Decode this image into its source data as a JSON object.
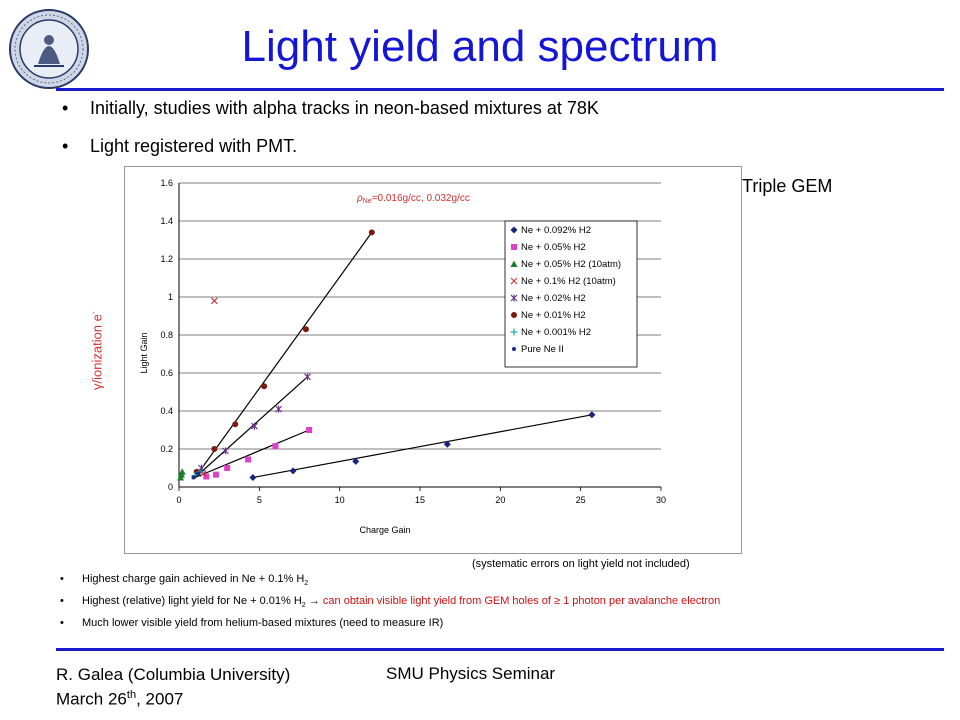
{
  "slide": {
    "title": "Light yield and spectrum",
    "bullets_top": [
      "Initially, studies with alpha tracks in neon-based mixtures at 78K",
      "Light registered with PMT."
    ],
    "triple_gem_note": "**Triple GEM",
    "ylabel_outside": "γ/ionization e",
    "ylabel_outside_sup": "-",
    "systematic_note": "(systematic errors on light yield not included)",
    "bottom_bullets": {
      "b1_pre": "Highest charge gain achieved in Ne + 0.1% H",
      "b1_sub": "2",
      "b2_pre": "Highest (relative) light yield for Ne + 0.01% H",
      "b2_sub": "2",
      "b2_arrow": " → ",
      "b2_red": "can obtain visible light yield from GEM holes of ≥ 1 photon per avalanche electron",
      "b3": "Much lower visible yield from helium-based mixtures (need to measure IR)"
    },
    "footer": {
      "author": "R. Galea (Columbia University)",
      "date_pre": "March 26",
      "date_sup": "th",
      "date_post": ", 2007",
      "center": "SMU Physics Seminar"
    },
    "colors": {
      "title": "#1515d8",
      "rule": "#1a1acc",
      "red_text": "#d01010"
    }
  },
  "chart_data": {
    "type": "scatter",
    "annotation_rho": "ρ",
    "annotation_sub": "Ne",
    "annotation_rest": "=0.016g/cc, 0.032g/cc",
    "xlabel": "Charge Gain",
    "ylabel": "Light Gain",
    "xlim": [
      0,
      30
    ],
    "ylim": [
      0,
      1.6
    ],
    "xticks": [
      "0",
      "5",
      "10",
      "15",
      "20",
      "25",
      "30"
    ],
    "yticks": [
      "0",
      "0.2",
      "0.4",
      "0.6",
      "0.8",
      "1",
      "1.2",
      "1.4",
      "1.6"
    ],
    "legend_position": "top-right",
    "series": [
      {
        "name": "Ne + 0.092% H2",
        "color": "#1a237e",
        "marker": "diamond",
        "points": [
          [
            4.6,
            0.05
          ],
          [
            7.1,
            0.085
          ],
          [
            11.0,
            0.135
          ],
          [
            16.7,
            0.225
          ],
          [
            25.7,
            0.38
          ]
        ]
      },
      {
        "name": "Ne + 0.05% H2",
        "color": "#e040c8",
        "marker": "square",
        "points": [
          [
            1.7,
            0.055
          ],
          [
            2.3,
            0.065
          ],
          [
            3.0,
            0.1
          ],
          [
            4.3,
            0.145
          ],
          [
            6.0,
            0.215
          ],
          [
            8.1,
            0.3
          ]
        ]
      },
      {
        "name": "Ne + 0.05% H2 (10atm)",
        "color": "#1b7f2a",
        "marker": "triangle",
        "points": [
          [
            0.1,
            0.05
          ],
          [
            0.15,
            0.065
          ],
          [
            0.2,
            0.08
          ]
        ]
      },
      {
        "name": "Ne + 0.1% H2 (10atm)",
        "color": "#cc3333",
        "marker": "x",
        "points": [
          [
            2.2,
            0.98
          ],
          [
            1.5,
            0.07
          ]
        ]
      },
      {
        "name": "Ne + 0.02% H2",
        "color": "#6a2c8a",
        "marker": "star",
        "points": [
          [
            1.4,
            0.1
          ],
          [
            2.9,
            0.19
          ],
          [
            4.7,
            0.32
          ],
          [
            6.2,
            0.41
          ],
          [
            8.0,
            0.58
          ]
        ]
      },
      {
        "name": "Ne + 0.01% H2",
        "color": "#7b1a10",
        "marker": "circle",
        "points": [
          [
            1.1,
            0.08
          ],
          [
            2.2,
            0.2
          ],
          [
            3.5,
            0.33
          ],
          [
            5.3,
            0.53
          ],
          [
            7.9,
            0.83
          ],
          [
            12.0,
            1.34
          ]
        ]
      },
      {
        "name": "Ne + 0.001% H2",
        "color": "#00a0b0",
        "marker": "plus",
        "points": [
          [
            1.0,
            0.06
          ],
          [
            1.3,
            0.08
          ]
        ]
      },
      {
        "name": "Pure Ne II",
        "color": "#1a2a8a",
        "marker": "dot",
        "points": [
          [
            0.9,
            0.05
          ],
          [
            1.2,
            0.07
          ]
        ]
      }
    ],
    "fit_lines": [
      {
        "from": [
          4.6,
          0.05
        ],
        "to": [
          25.7,
          0.38
        ]
      },
      {
        "from": [
          1.0,
          0.05
        ],
        "to": [
          8.1,
          0.3
        ]
      },
      {
        "from": [
          1.0,
          0.05
        ],
        "to": [
          8.0,
          0.58
        ]
      },
      {
        "from": [
          1.0,
          0.05
        ],
        "to": [
          12.0,
          1.34
        ]
      }
    ]
  }
}
